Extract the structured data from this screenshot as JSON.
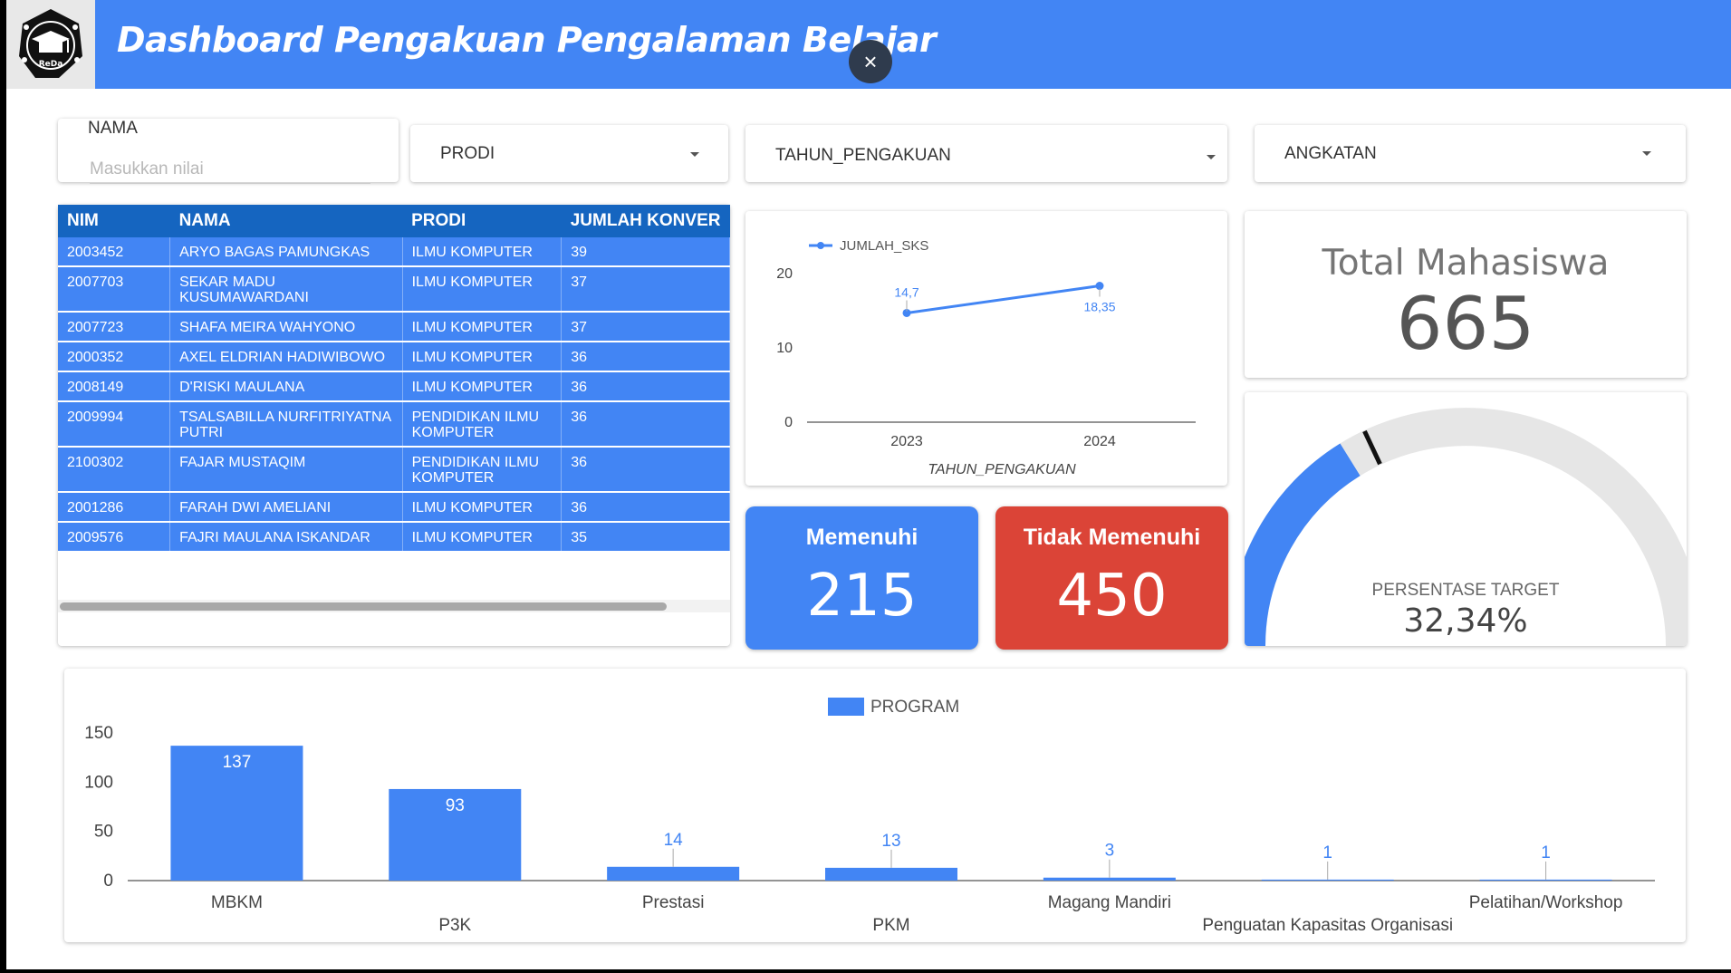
{
  "header": {
    "title": "Dashboard Pengakuan Pengalaman Belajar",
    "close_glyph": "×",
    "logo_text": "ReDa",
    "color": "#4285f4"
  },
  "filters": {
    "nama_label": "NAMA",
    "nama_placeholder": "Masukkan nilai",
    "prodi_label": "PRODI",
    "tahun_label": "TAHUN_PENGAKUAN",
    "angkatan_label": "ANGKATAN"
  },
  "table": {
    "columns": [
      "NIM",
      "NAMA",
      "PRODI",
      "JUMLAH KONVER"
    ],
    "rows": [
      [
        "2003452",
        "ARYO BAGAS PAMUNGKAS",
        "ILMU KOMPUTER",
        "39"
      ],
      [
        "2007703",
        "SEKAR MADU KUSUMAWARDANI",
        "ILMU KOMPUTER",
        "37"
      ],
      [
        "2007723",
        "SHAFA MEIRA WAHYONO",
        "ILMU KOMPUTER",
        "37"
      ],
      [
        "2000352",
        "AXEL ELDRIAN HADIWIBOWO",
        "ILMU KOMPUTER",
        "36"
      ],
      [
        "2008149",
        "D'RISKI MAULANA",
        "ILMU KOMPUTER",
        "36"
      ],
      [
        "2009994",
        "TSALSABILLA NURFITRIYATNA PUTRI",
        "PENDIDIKAN ILMU KOMPUTER",
        "36"
      ],
      [
        "2100302",
        "FAJAR MUSTAQIM",
        "PENDIDIKAN ILMU KOMPUTER",
        "36"
      ],
      [
        "2001286",
        "FARAH DWI AMELIANI",
        "ILMU KOMPUTER",
        "36"
      ],
      [
        "2009576",
        "FAJRI MAULANA ISKANDAR",
        "ILMU KOMPUTER",
        "35"
      ]
    ],
    "header_color": "#1565c0",
    "row_color": "#4285f4"
  },
  "total": {
    "title": "Total Mahasiswa",
    "value": "665"
  },
  "kpis": {
    "memenuhi_label": "Memenuhi",
    "memenuhi_value": "215",
    "memenuhi_color": "#4285f4",
    "tidak_label": "Tidak Memenuhi",
    "tidak_value": "450",
    "tidak_color": "#db4437"
  },
  "gauge": {
    "label": "PERSENTASE TARGET",
    "value_text": "32,34%",
    "value": 0.3234,
    "target": 0.36,
    "fill_color": "#4285f4",
    "track_color": "#e6e6e6"
  },
  "chart_data": [
    {
      "type": "line",
      "x": [
        "2023",
        "2024"
      ],
      "series": [
        {
          "name": "JUMLAH_SKS",
          "values": [
            14.7,
            18.35
          ]
        }
      ],
      "data_labels": [
        "14,7",
        "18,35"
      ],
      "xlabel": "TAHUN_PENGAKUAN",
      "ylabel": "",
      "yticks": [
        "0",
        "10",
        "20"
      ],
      "ylim": [
        0,
        20
      ],
      "legend": "top-left",
      "color": "#4285f4"
    },
    {
      "type": "bar",
      "categories": [
        "MBKM",
        "P3K",
        "Prestasi",
        "PKM",
        "Magang Mandiri",
        "Penguatan Kapasitas Organisasi",
        "Pelatihan/Workshop"
      ],
      "series": [
        {
          "name": "PROGRAM",
          "values": [
            137,
            93,
            14,
            13,
            3,
            1,
            1
          ]
        }
      ],
      "yticks": [
        "0",
        "50",
        "100",
        "150"
      ],
      "ylim": [
        0,
        150
      ],
      "legend": "top-center",
      "color": "#4285f4"
    }
  ]
}
